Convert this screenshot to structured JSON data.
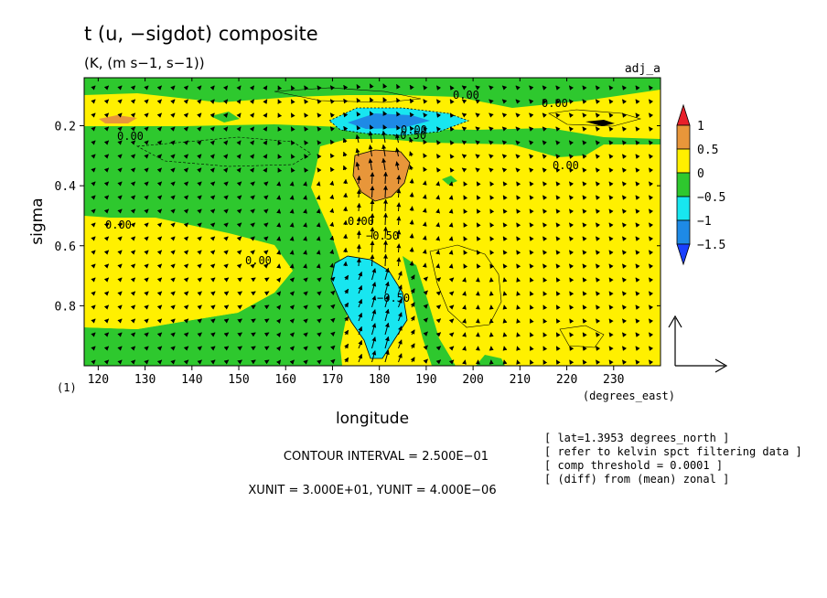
{
  "title": "t (u, −sigdot) composite",
  "units": "(K, (m s−1, s−1))",
  "experiment": "adj_a",
  "chart_data": {
    "type": "heatmap",
    "xlabel": "longitude",
    "x_units": "(degrees_east)",
    "ylabel": "sigma",
    "y_footnote": "(1)",
    "xlim": [
      117,
      240
    ],
    "ylim": [
      1.0,
      0.04
    ],
    "xticks": [
      "120",
      "130",
      "140",
      "150",
      "160",
      "170",
      "180",
      "190",
      "200",
      "210",
      "220",
      "230"
    ],
    "yticks": [
      "0.2",
      "0.4",
      "0.6",
      "0.8"
    ],
    "colorbar": {
      "labels": [
        "1",
        "0.5",
        "0",
        "−0.5",
        "−1",
        "−1.5"
      ],
      "colors": {
        "above_1": "#e8202a",
        "c_0_5_to_1": "#e8963a",
        "c_0_to_0_5": "#fff000",
        "c_m0_5_to_0": "#2ec82e",
        "c_m1_to_m0_5": "#18e6f0",
        "c_m1_5_to_m1": "#1e8ae6",
        "below_m1_5": "#1a40ff"
      }
    },
    "contour_labels": [
      "0.00",
      "0.00",
      "0.00",
      "0.00",
      "0.00",
      "0.00",
      "0.00",
      "0.00",
      "−0.50",
      "−0.50",
      "−0.50"
    ],
    "contour_interval": "CONTOUR INTERVAL = 2.500E−01",
    "vector_units": "XUNIT = 3.000E+01, YUNIT = 4.000E−06",
    "notes": [
      "[ lat=1.3953 degrees_north ]",
      "[ refer to kelvin spct filtering data ]",
      "[ comp threshold = 0.0001 ]",
      "[ (diff) from (mean) zonal ]"
    ]
  }
}
